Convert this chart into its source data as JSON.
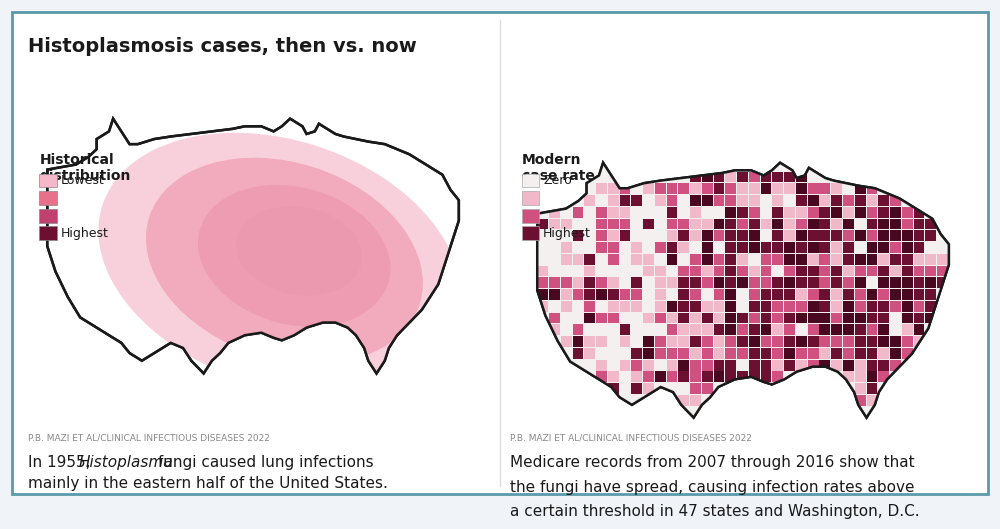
{
  "title": "Histoplasmosis cases, then vs. now",
  "bg_color": "#f0f4f8",
  "panel_bg": "#ffffff",
  "border_color": "#5b9aaa",
  "left_legend_title": "Historical\ndistribution",
  "left_legend_labels": [
    "Lowest",
    "",
    "",
    "Highest"
  ],
  "left_legend_colors": [
    "#f5b8c8",
    "#e8708a",
    "#c04070",
    "#6b1030"
  ],
  "right_legend_title": "Modern\ncase rate",
  "right_legend_labels": [
    "Zero",
    "",
    "",
    "Highest"
  ],
  "right_legend_colors": [
    "#f5f0f0",
    "#f0b8c8",
    "#d05080",
    "#6b1030"
  ],
  "source_text": "P.B. MAZI ET AL/CLINICAL INFECTIOUS DISEASES 2022",
  "left_caption_plain": "In 1955, ",
  "left_caption_italic": "Histoplasma",
  "left_caption_rest": " fungi caused lung infections\nmainly in the eastern half of the United States.",
  "right_caption": "Medicare records from 2007 through 2016 show that\nthe fungi have spread, causing infection rates above\na certain threshold in 47 states and Washington, D.C.",
  "map_outline_color": "#1a1a1a",
  "map_fill_white": "#ffffff",
  "hist_zone1_color": "#f5b8c8",
  "hist_zone2_color": "#e8708a",
  "hist_zone3_color": "#c04070",
  "hist_zone4_color": "#6b1030"
}
